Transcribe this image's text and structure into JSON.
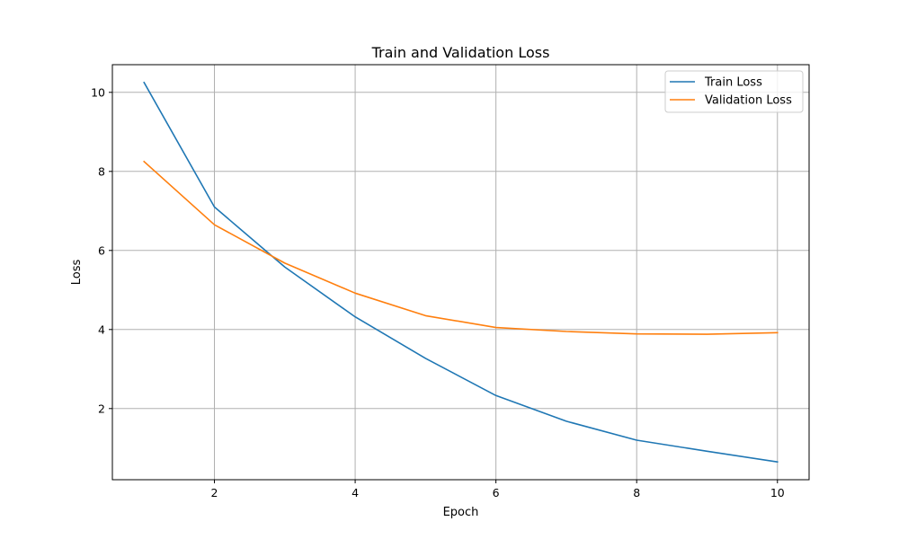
{
  "chart_data": {
    "type": "line",
    "title": "Train and Validation Loss",
    "xlabel": "Epoch",
    "ylabel": "Loss",
    "xlim": [
      0.55,
      10.45
    ],
    "ylim": [
      0.2,
      10.7
    ],
    "xticks": [
      2,
      4,
      6,
      8,
      10
    ],
    "yticks": [
      2,
      4,
      6,
      8,
      10
    ],
    "grid": true,
    "legend_position": "top-right",
    "x": [
      1,
      2,
      3,
      4,
      5,
      6,
      7,
      8,
      9,
      10
    ],
    "series": [
      {
        "name": "Train Loss",
        "color": "#1f77b4",
        "values": [
          10.25,
          7.1,
          5.58,
          4.32,
          3.27,
          2.33,
          1.68,
          1.2,
          0.92,
          0.65
        ]
      },
      {
        "name": "Validation Loss",
        "color": "#ff7f0e",
        "values": [
          8.25,
          6.65,
          5.68,
          4.92,
          4.35,
          4.05,
          3.95,
          3.89,
          3.88,
          3.92
        ]
      }
    ]
  }
}
